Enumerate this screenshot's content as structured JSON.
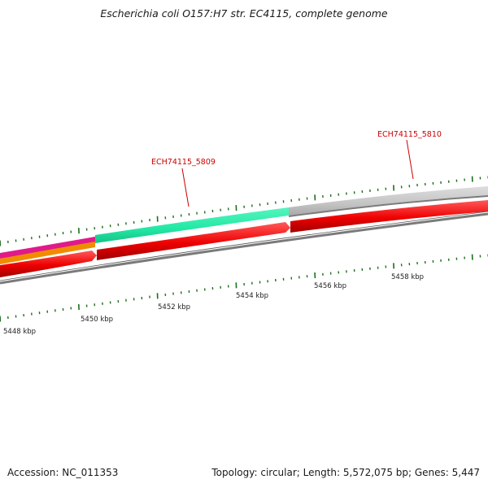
{
  "title": "Escherichia coli O157:H7 str. EC4115, complete genome",
  "footer": {
    "accession": "Accession: NC_011353",
    "stats": "Topology: circular; Length: 5,572,075 bp; Genes: 5,447"
  },
  "colors": {
    "feature_red": "#ee0000",
    "feature_red_dark": "#a00000",
    "feature_gray": "#c4c4c4",
    "feature_green": "#22e8a4",
    "feature_magenta": "#e01a8a",
    "feature_orange": "#f08c00",
    "backbone": "#7a7a7a",
    "tick_green": "#1d6f1d",
    "gene_label": "#cc0000",
    "kbp_label": "#222222"
  },
  "scale": {
    "unit": "kbp",
    "labels": [
      "5448 kbp",
      "5450 kbp",
      "5452 kbp",
      "5454 kbp",
      "5456 kbp",
      "5458 kbp"
    ]
  },
  "genes": [
    {
      "name": "ECH74115_5809"
    },
    {
      "name": "ECH74115_5810"
    }
  ]
}
